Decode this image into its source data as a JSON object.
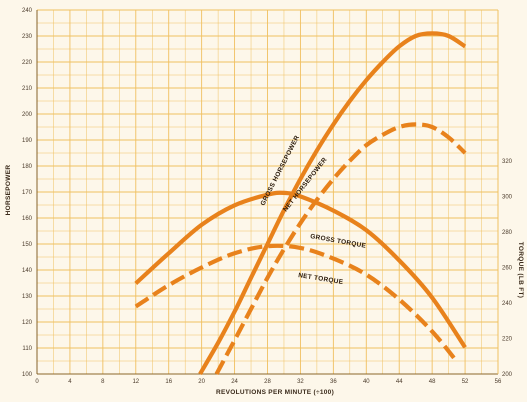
{
  "chart_data": {
    "type": "line",
    "xlabel": "REVOLUTIONS PER MINUTE (÷100)",
    "ylabel_left": "HORSEPOWER",
    "ylabel_right": "TORQUE (LB FT)",
    "x_ticks": [
      "0",
      "4",
      "8",
      "12",
      "16",
      "20",
      "24",
      "28",
      "32",
      "36",
      "40",
      "44",
      "48",
      "52",
      "56"
    ],
    "y_left_ticks": [
      "100",
      "110",
      "120",
      "130",
      "140",
      "150",
      "160",
      "170",
      "180",
      "190",
      "200",
      "210",
      "220",
      "230",
      "240"
    ],
    "y_right_ticks": [
      "200",
      "220",
      "240",
      "260",
      "280",
      "300",
      "320"
    ],
    "xlim": [
      0,
      56
    ],
    "ylim_left": [
      100,
      240
    ],
    "ylim_right": [
      200,
      405
    ],
    "grid": true,
    "colors": {
      "grid": "#f0c060",
      "axis": "#6b4a1a",
      "curve": "#e8821c",
      "background": "#fdf7ea"
    },
    "series": [
      {
        "name": "GROSS HORSEPOWER",
        "axis": "left",
        "style": "solid",
        "x": [
          19.8,
          22,
          24,
          26,
          28,
          30,
          32,
          34,
          36,
          38,
          40,
          42,
          44,
          46,
          48,
          50,
          52
        ],
        "y": [
          100,
          112,
          124,
          137,
          150,
          163,
          175,
          186,
          196,
          205,
          213,
          220,
          226,
          230,
          231,
          230,
          226
        ]
      },
      {
        "name": "NET HORSEPOWER",
        "axis": "left",
        "style": "dashed",
        "x": [
          21.8,
          24,
          26,
          28,
          30,
          32,
          34,
          36,
          38,
          40,
          42,
          44,
          46,
          48,
          50,
          52
        ],
        "y": [
          100,
          113,
          125,
          137,
          148,
          158,
          167,
          175,
          182,
          188,
          192,
          195,
          196,
          195,
          191,
          185
        ]
      },
      {
        "name": "GROSS TORQUE",
        "axis": "right",
        "style": "solid",
        "x": [
          12,
          16,
          20,
          24,
          28,
          30,
          32,
          36,
          40,
          44,
          48,
          52
        ],
        "y": [
          251,
          268,
          284,
          295,
          301,
          302,
          300,
          292,
          281,
          264,
          243,
          215
        ]
      },
      {
        "name": "NET TORQUE",
        "axis": "right",
        "style": "dashed",
        "x": [
          12,
          16,
          20,
          24,
          28,
          32,
          36,
          40,
          44,
          48,
          51
        ],
        "y": [
          238,
          250,
          260,
          268,
          272,
          271,
          265,
          256,
          242,
          224,
          207
        ]
      }
    ]
  }
}
